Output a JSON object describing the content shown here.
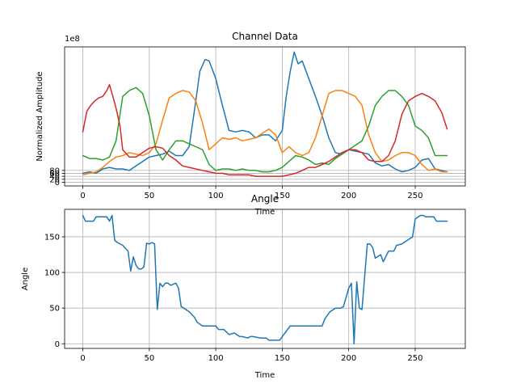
{
  "chart_data": [
    {
      "type": "line",
      "title": "Channel Data",
      "xlabel": "Time",
      "ylabel": "Normalized Amplitude",
      "offset_text": "1e8",
      "xlim": [
        -13.7,
        287.7
      ],
      "ylim": [
        -2.5,
        91.5
      ],
      "xticks": [
        0,
        50,
        100,
        150,
        200,
        250
      ],
      "yticks": [
        0,
        2,
        4,
        6,
        8
      ],
      "ytick_labels": [
        "0",
        "20",
        "40",
        "60",
        "80"
      ],
      "grid": true,
      "colors": [
        "#1f77b4",
        "#ff7f0e",
        "#2ca02c",
        "#d62728"
      ],
      "series": [
        {
          "x": [
            0,
            5,
            10,
            15,
            20,
            25,
            30,
            35,
            40,
            45,
            50,
            55,
            60,
            65,
            70,
            75,
            80,
            85,
            88,
            92,
            95,
            100,
            105,
            110,
            115,
            120,
            125,
            130,
            135,
            140,
            145,
            150,
            153,
            156,
            159,
            162,
            165,
            170,
            175,
            180,
            185,
            190,
            195,
            200,
            205,
            210,
            215,
            220,
            225,
            230,
            235,
            240,
            245,
            250,
            255,
            260,
            265,
            270,
            274
          ],
          "y": [
            6,
            7,
            6,
            9,
            10,
            9,
            9,
            8,
            11,
            14,
            17,
            18,
            19,
            21,
            18,
            18,
            24,
            55,
            75,
            83,
            82,
            70,
            52,
            35,
            34,
            35,
            34,
            30,
            32,
            32,
            28,
            35,
            58,
            75,
            88,
            80,
            82,
            70,
            58,
            45,
            30,
            20,
            19,
            22,
            21,
            20,
            19,
            13,
            11,
            12,
            9,
            7,
            8,
            10,
            15,
            16,
            9,
            8,
            7
          ]
        },
        {
          "x": [
            0,
            5,
            10,
            15,
            20,
            25,
            30,
            35,
            40,
            45,
            50,
            55,
            60,
            65,
            70,
            75,
            80,
            85,
            90,
            95,
            100,
            105,
            110,
            115,
            120,
            125,
            130,
            135,
            140,
            145,
            150,
            155,
            160,
            165,
            170,
            175,
            180,
            185,
            190,
            195,
            200,
            205,
            210,
            215,
            220,
            225,
            230,
            235,
            240,
            245,
            250,
            255,
            260,
            265,
            270,
            274
          ],
          "y": [
            5,
            6,
            7,
            10,
            14,
            17,
            18,
            20,
            19,
            18,
            20,
            26,
            42,
            57,
            60,
            62,
            61,
            55,
            40,
            22,
            26,
            30,
            29,
            30,
            28,
            29,
            30,
            33,
            36,
            32,
            20,
            24,
            20,
            18,
            20,
            30,
            45,
            60,
            62,
            62,
            60,
            58,
            52,
            32,
            20,
            14,
            15,
            18,
            20,
            20,
            18,
            12,
            8,
            9,
            7,
            7
          ]
        },
        {
          "x": [
            0,
            5,
            10,
            15,
            20,
            25,
            30,
            35,
            40,
            45,
            50,
            55,
            60,
            65,
            70,
            75,
            80,
            85,
            90,
            95,
            100,
            105,
            110,
            115,
            120,
            125,
            130,
            135,
            140,
            145,
            150,
            155,
            160,
            165,
            170,
            175,
            180,
            185,
            190,
            195,
            200,
            205,
            210,
            215,
            220,
            225,
            230,
            235,
            240,
            245,
            250,
            255,
            260,
            265,
            270,
            274
          ],
          "y": [
            18,
            16,
            16,
            15,
            17,
            28,
            58,
            62,
            64,
            60,
            45,
            22,
            15,
            22,
            28,
            28,
            26,
            24,
            22,
            12,
            8,
            9,
            9,
            8,
            9,
            8,
            8,
            7,
            7,
            8,
            10,
            14,
            18,
            17,
            15,
            12,
            13,
            12,
            16,
            19,
            22,
            25,
            28,
            38,
            52,
            58,
            62,
            62,
            58,
            52,
            38,
            35,
            30,
            18,
            18,
            18
          ]
        },
        {
          "x": [
            0,
            3,
            6,
            9,
            12,
            15,
            18,
            20,
            22,
            25,
            28,
            30,
            35,
            40,
            45,
            50,
            55,
            60,
            65,
            70,
            75,
            80,
            85,
            90,
            95,
            100,
            105,
            110,
            115,
            120,
            125,
            130,
            135,
            140,
            145,
            150,
            155,
            160,
            165,
            170,
            175,
            180,
            185,
            190,
            195,
            200,
            205,
            210,
            215,
            220,
            225,
            230,
            235,
            240,
            245,
            250,
            255,
            260,
            265,
            270,
            274
          ],
          "y": [
            34,
            48,
            52,
            55,
            57,
            58,
            62,
            66,
            60,
            50,
            38,
            22,
            17,
            17,
            20,
            23,
            24,
            23,
            18,
            15,
            11,
            10,
            9,
            8,
            7,
            6,
            6,
            5,
            5,
            5,
            5,
            4,
            4,
            4,
            4,
            4,
            5,
            6,
            8,
            10,
            10,
            12,
            14,
            17,
            20,
            22,
            22,
            20,
            15,
            14,
            14,
            18,
            28,
            46,
            55,
            58,
            60,
            58,
            55,
            47,
            36
          ]
        }
      ]
    },
    {
      "type": "line",
      "title": "Angle",
      "xlabel": "Time",
      "ylabel": "Angle",
      "xlim": [
        -13.7,
        287.7
      ],
      "ylim": [
        -6.5,
        188.5
      ],
      "xticks": [
        0,
        50,
        100,
        150,
        200,
        250
      ],
      "yticks": [
        0,
        50,
        100,
        150
      ],
      "grid": true,
      "colors": [
        "#1f77b4"
      ],
      "series": [
        {
          "x": [
            0,
            2,
            4,
            8,
            10,
            12,
            16,
            18,
            20,
            22,
            24,
            26,
            30,
            34,
            36,
            38,
            40,
            42,
            44,
            46,
            48,
            50,
            52,
            54,
            56,
            58,
            60,
            62,
            64,
            66,
            70,
            72,
            74,
            76,
            80,
            84,
            86,
            90,
            96,
            98,
            100,
            102,
            106,
            110,
            114,
            118,
            120,
            124,
            126,
            128,
            134,
            138,
            140,
            144,
            148,
            150,
            152,
            156,
            160,
            170,
            180,
            182,
            186,
            190,
            194,
            196,
            200,
            202,
            204,
            206,
            208,
            210,
            214,
            216,
            218,
            220,
            224,
            226,
            230,
            234,
            236,
            240,
            244,
            248,
            250,
            254,
            256,
            258,
            264,
            266,
            270,
            274
          ],
          "y": [
            180,
            172,
            172,
            172,
            178,
            178,
            178,
            178,
            172,
            180,
            145,
            142,
            138,
            130,
            102,
            122,
            110,
            105,
            105,
            108,
            141,
            140,
            142,
            140,
            48,
            85,
            80,
            85,
            85,
            82,
            85,
            78,
            52,
            50,
            45,
            37,
            30,
            25,
            25,
            25,
            25,
            20,
            20,
            13,
            15,
            10,
            10,
            8,
            10,
            10,
            8,
            8,
            5,
            5,
            5,
            10,
            15,
            25,
            25,
            25,
            25,
            35,
            45,
            50,
            50,
            52,
            78,
            85,
            0,
            87,
            50,
            48,
            140,
            140,
            135,
            120,
            125,
            115,
            130,
            130,
            138,
            140,
            145,
            150,
            175,
            180,
            180,
            178,
            178,
            172,
            172,
            172
          ]
        }
      ]
    }
  ]
}
